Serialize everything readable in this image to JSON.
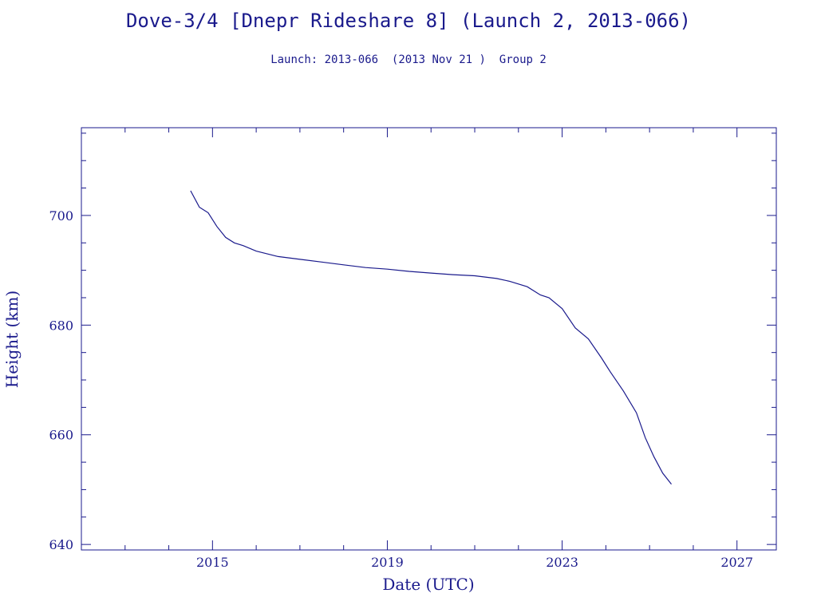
{
  "chart_data": {
    "type": "line",
    "title": "Dove-3/4 [Dnepr Rideshare 8] (Launch 2, 2013-066)",
    "subtitle": "Launch: 2013-066  (2013 Nov 21 )  Group 2",
    "xlabel": "Date (UTC)",
    "ylabel": "Height (km)",
    "xlim": [
      2012.0,
      2027.9
    ],
    "ylim": [
      639,
      716
    ],
    "x_ticks": [
      2015,
      2019,
      2023,
      2027
    ],
    "y_ticks": [
      640,
      660,
      680,
      700
    ],
    "grid": false,
    "color": "#1a1a8c",
    "series": [
      {
        "x": [
          2014.5,
          2014.7,
          2014.9,
          2015.1,
          2015.3,
          2015.5,
          2015.7,
          2016.0,
          2016.5,
          2017.0,
          2017.5,
          2018.0,
          2018.5,
          2019.0,
          2019.5,
          2020.0,
          2020.5,
          2021.0,
          2021.5,
          2021.8,
          2022.2,
          2022.5,
          2022.7,
          2023.0,
          2023.3,
          2023.6,
          2023.9,
          2024.1,
          2024.4,
          2024.7,
          2024.9,
          2025.1,
          2025.3,
          2025.5
        ],
        "y": [
          704.5,
          701.5,
          700.5,
          698.0,
          696.0,
          695.0,
          694.5,
          693.5,
          692.5,
          692.0,
          691.5,
          691.0,
          690.5,
          690.2,
          689.8,
          689.5,
          689.2,
          689.0,
          688.5,
          688.0,
          687.0,
          685.5,
          685.0,
          683.0,
          679.5,
          677.5,
          674.0,
          671.5,
          668.0,
          664.0,
          659.5,
          656.0,
          653.0,
          651.0
        ]
      }
    ]
  }
}
